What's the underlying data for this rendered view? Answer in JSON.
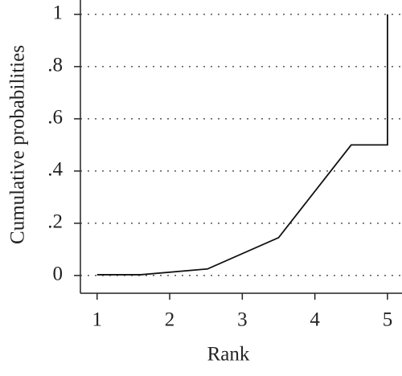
{
  "chart_data": {
    "type": "line",
    "x_label": "Rank",
    "y_label": "Cumulative probabilities",
    "x": [
      1,
      1.6,
      2.52,
      3.5,
      4.5,
      5,
      5
    ],
    "series": [
      {
        "color": "#111111",
        "values": [
          0.003,
          0.003,
          0.025,
          0.145,
          0.5,
          0.5,
          1
        ]
      }
    ],
    "xlim": [
      0.77,
      5.2
    ],
    "xticks": [
      1,
      2,
      3,
      4,
      5
    ],
    "ylim": [
      -0.068,
      1.055
    ],
    "yticks": [
      0,
      {
        "value": 0.2,
        "label": ".2"
      },
      {
        "value": 0.4,
        "label": ".4"
      },
      {
        "value": 0.6,
        "label": ".6"
      },
      {
        "value": 0.8,
        "label": ".8"
      },
      1
    ],
    "grid": true
  }
}
